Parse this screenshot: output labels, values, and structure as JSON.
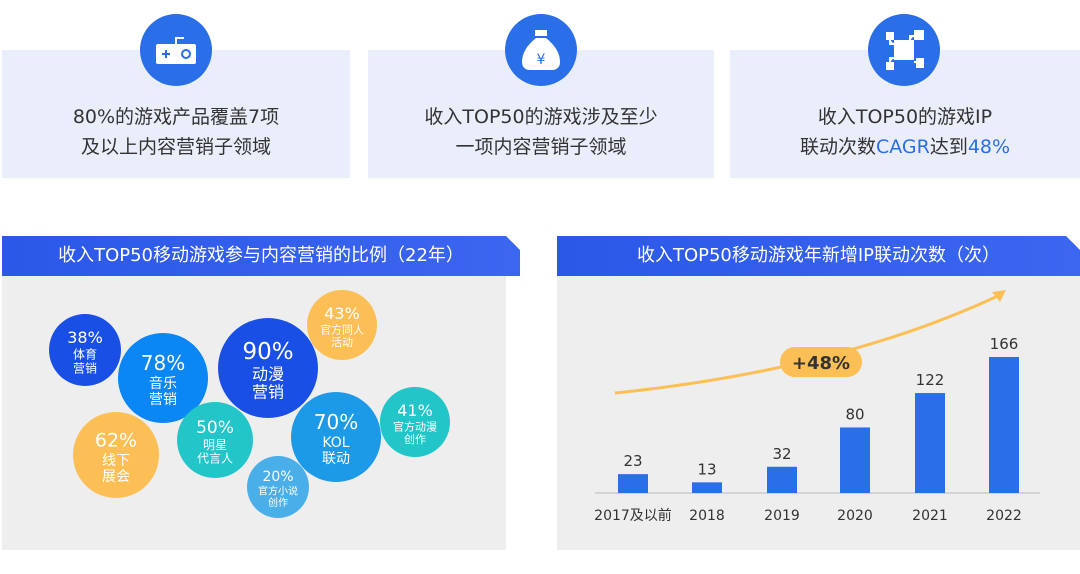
{
  "cards": [
    {
      "icon": "gamepad-icon",
      "line1": "80%的游戏产品覆盖7项",
      "line2": "及以上内容营销子领域"
    },
    {
      "icon": "money-bag-icon",
      "line1": "收入TOP50的游戏涉及至少",
      "line2": "一项内容营销子领域"
    },
    {
      "icon": "network-icon",
      "line1": "收入TOP50的游戏IP",
      "line2a": "联动次数",
      "line2b": "CAGR",
      "line2c": "达到",
      "line2d": "48%"
    }
  ],
  "chart_data": [
    {
      "type": "bubble",
      "title": "收入TOP50移动游戏参与内容营销的比例（22年）",
      "items": [
        {
          "value": "38%",
          "label": [
            "体育",
            "营销"
          ],
          "color": "#1a4fe6"
        },
        {
          "value": "78%",
          "label": [
            "音乐",
            "营销"
          ],
          "color": "#0a86f5"
        },
        {
          "value": "90%",
          "label": [
            "动漫",
            "营销"
          ],
          "color": "#1a4fe6"
        },
        {
          "value": "43%",
          "label": [
            "官方同人",
            "活动"
          ],
          "color": "#fbbf55"
        },
        {
          "value": "62%",
          "label": [
            "线下",
            "展会"
          ],
          "color": "#fbbf55"
        },
        {
          "value": "50%",
          "label": [
            "明星",
            "代言人"
          ],
          "color": "#22c5c8"
        },
        {
          "value": "70%",
          "label": [
            "KOL",
            "联动"
          ],
          "color": "#1c9ae8"
        },
        {
          "value": "41%",
          "label": [
            "官方动漫",
            "创作"
          ],
          "color": "#22c5c8"
        },
        {
          "value": "20%",
          "label": [
            "官方小说",
            "创作"
          ],
          "color": "#4aaee8"
        }
      ]
    },
    {
      "type": "bar",
      "title": "收入TOP50移动游戏年新增IP联动次数（次）",
      "categories": [
        "2017及以前",
        "2018",
        "2019",
        "2020",
        "2021",
        "2022"
      ],
      "values": [
        23,
        13,
        32,
        80,
        122,
        166
      ],
      "annotation": "+48%",
      "bar_color": "#2a6ee8",
      "accent": "#fbbf55"
    }
  ]
}
